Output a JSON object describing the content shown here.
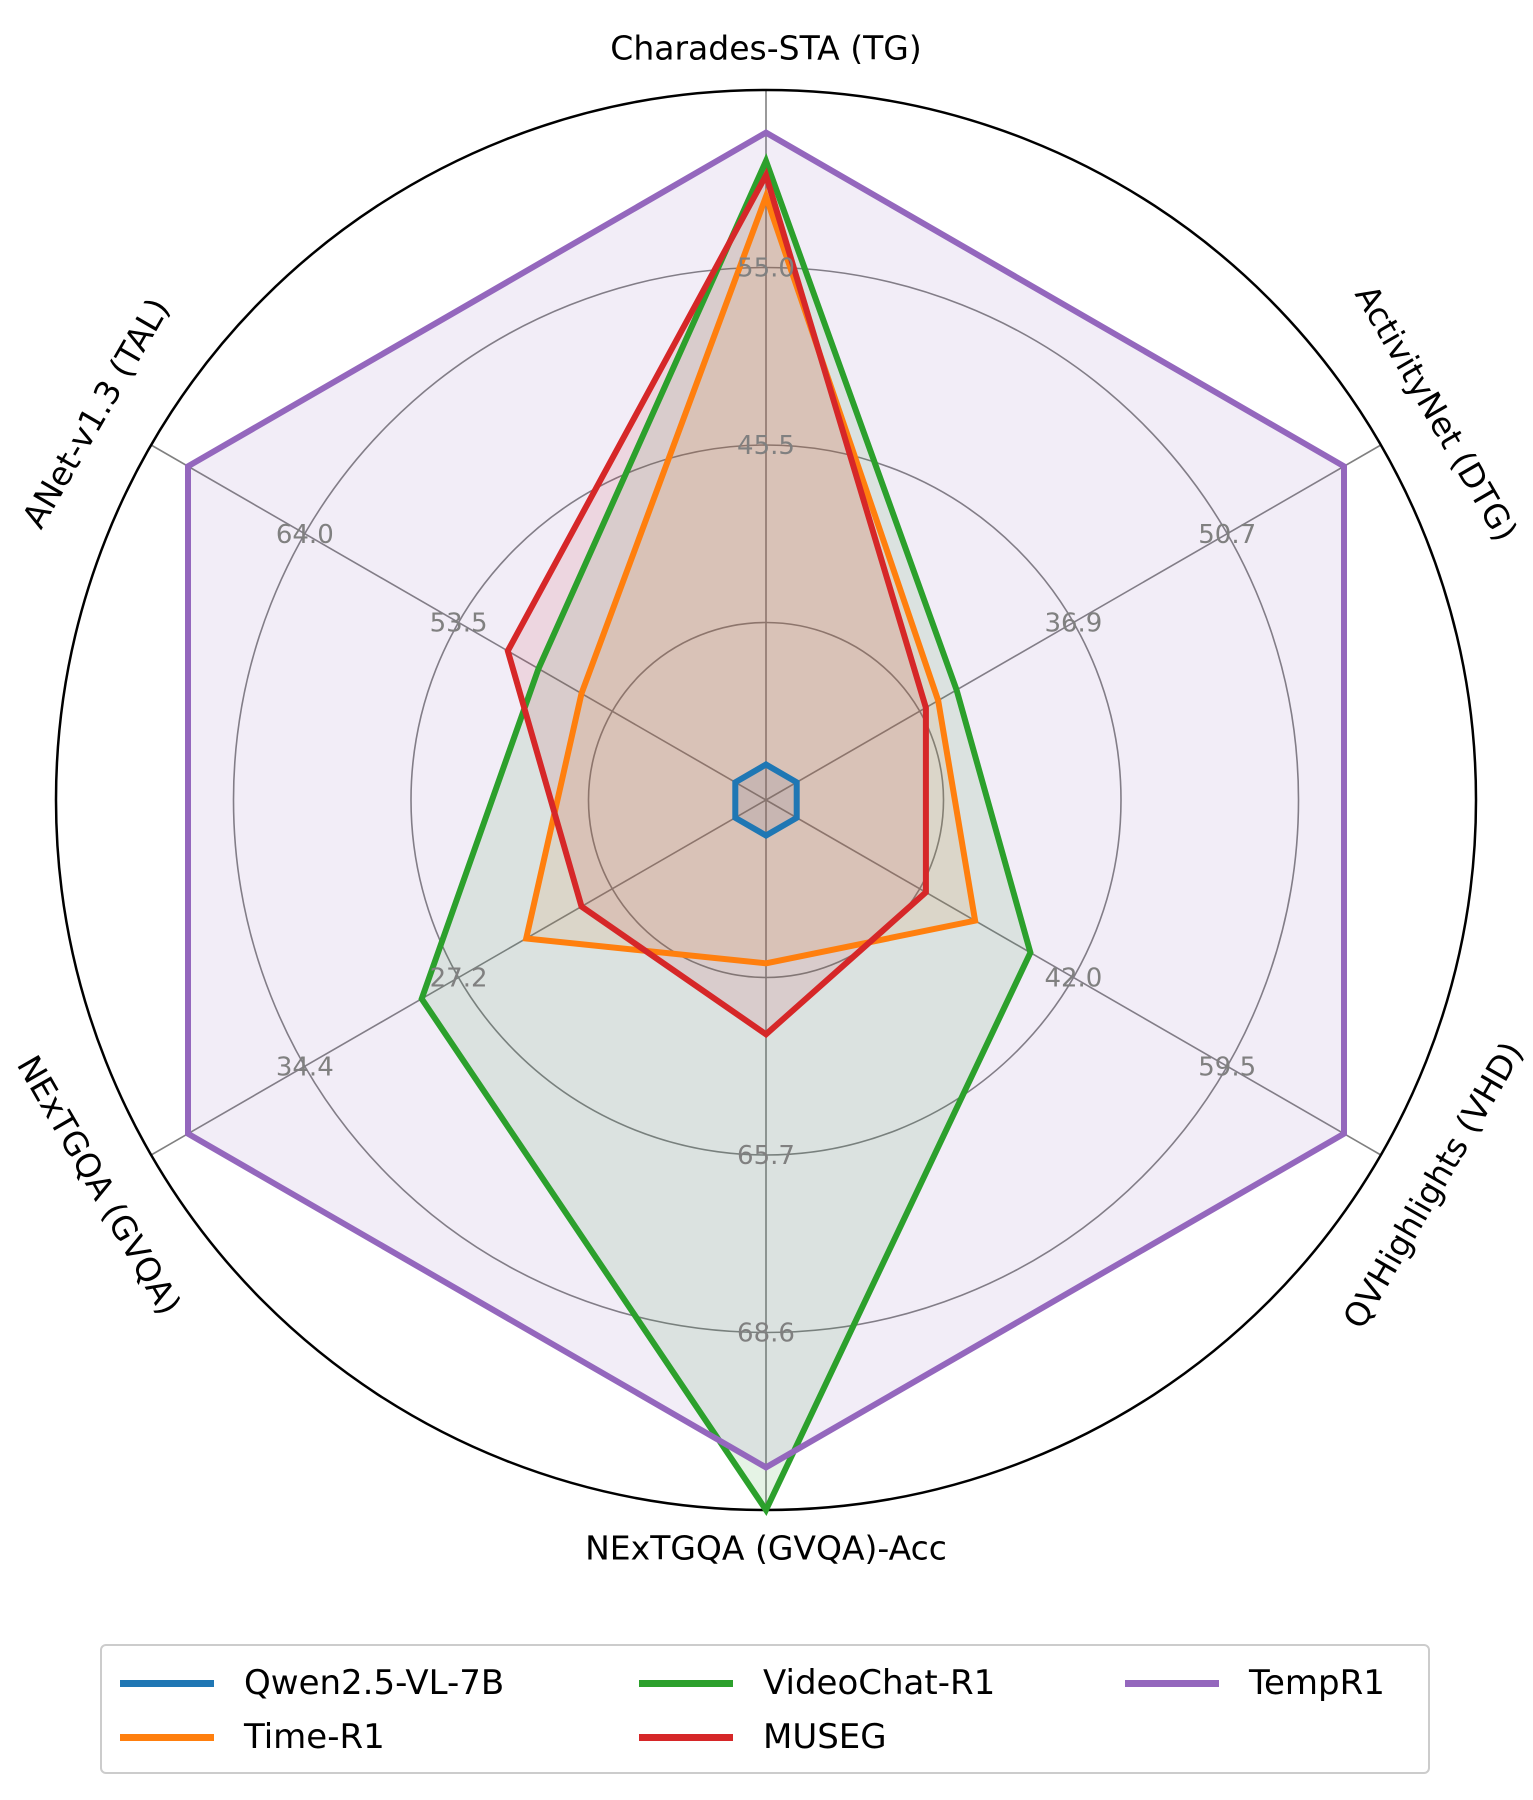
{
  "chart_data": {
    "type": "radar",
    "axes": [
      "Charades-STA (TG)",
      "ActivityNet (DTG)",
      "QVHighlights (VHD)",
      "NExTGQA (GVQA)-Acc",
      "NExTGQA (GVQA)",
      "ANet-v1.3 (TAL)"
    ],
    "tick_labels": [
      [
        "45.5",
        "55.0"
      ],
      [
        "36.9",
        "50.7"
      ],
      [
        "42.0",
        "59.5"
      ],
      [
        "65.7",
        "68.6"
      ],
      [
        "27.2",
        "34.4"
      ],
      [
        "53.5",
        "64.0"
      ]
    ],
    "series": [
      {
        "name": "Qwen2.5-VL-7B",
        "color": "#1f77b4",
        "values": [
          0.05,
          0.05,
          0.05,
          0.05,
          0.05,
          0.05
        ]
      },
      {
        "name": "Time-R1",
        "color": "#ff7f0e",
        "values": [
          0.85,
          0.28,
          0.34,
          0.23,
          0.39,
          0.3
        ]
      },
      {
        "name": "VideoChat-R1",
        "color": "#2ca02c",
        "values": [
          0.9,
          0.31,
          0.43,
          1.0,
          0.56,
          0.37
        ]
      },
      {
        "name": "MUSEG",
        "color": "#d62728",
        "values": [
          0.88,
          0.26,
          0.26,
          0.33,
          0.3,
          0.42
        ]
      },
      {
        "name": "TempR1",
        "color": "#9467bd",
        "values": [
          0.94,
          0.94,
          0.94,
          0.94,
          0.94,
          0.94
        ]
      }
    ],
    "legend_position": "bottom"
  }
}
